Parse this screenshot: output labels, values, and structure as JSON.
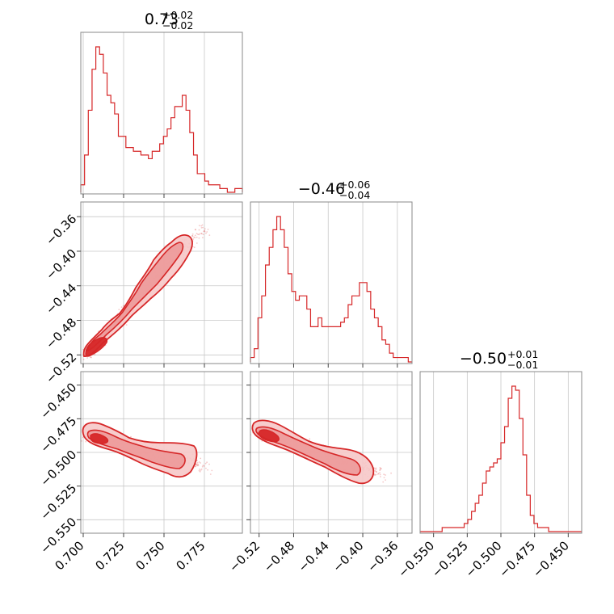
{
  "chart_data": {
    "type": "corner",
    "color": "#d62728",
    "grid": true,
    "parameters": [
      {
        "median": "0.73",
        "err_plus": "+0.02",
        "err_minus": "−0.02",
        "range": [
          0.6985,
          0.7985
        ],
        "ticks": [
          0.7,
          0.725,
          0.75,
          0.775
        ],
        "tick_labels": [
          "0.700",
          "0.725",
          "0.750",
          "0.775"
        ]
      },
      {
        "median": "−0.46",
        "err_plus": "+0.06",
        "err_minus": "−0.04",
        "range": [
          -0.53,
          -0.343
        ],
        "ticks": [
          -0.52,
          -0.48,
          -0.44,
          -0.4,
          -0.36
        ],
        "tick_labels": [
          "−0.52",
          "−0.48",
          "−0.44",
          "−0.40",
          "−0.36"
        ]
      },
      {
        "median": "−0.50",
        "err_plus": "+0.01",
        "err_minus": "−0.01",
        "range": [
          -0.56,
          -0.44
        ],
        "ticks": [
          -0.55,
          -0.525,
          -0.5,
          -0.475,
          -0.45
        ],
        "tick_labels": [
          "−0.550",
          "−0.525",
          "−0.500",
          "−0.475",
          "−0.450"
        ]
      }
    ],
    "histograms": [
      [
        2,
        10,
        22,
        33,
        39,
        37,
        32,
        26,
        24,
        21,
        15,
        15,
        12,
        12,
        11,
        11,
        10,
        10,
        9,
        11,
        11,
        13,
        15,
        17,
        20,
        23,
        23,
        26,
        22,
        16,
        10,
        5,
        5,
        3,
        2,
        2,
        2,
        1,
        1,
        0,
        0,
        1,
        1
      ],
      [
        1,
        3,
        10,
        15,
        22,
        26,
        30,
        33,
        30,
        26,
        20,
        16,
        14,
        15,
        15,
        12,
        8,
        8,
        10,
        8,
        8,
        8,
        8,
        8,
        9,
        10,
        13,
        15,
        15,
        18,
        18,
        16,
        12,
        10,
        8,
        5,
        4,
        2,
        1,
        1,
        1,
        1,
        0
      ],
      [
        0,
        0,
        0,
        0,
        0,
        0,
        1,
        1,
        1,
        1,
        1,
        1,
        2,
        3,
        5,
        7,
        9,
        12,
        15,
        16,
        17,
        18,
        22,
        26,
        33,
        36,
        35,
        28,
        19,
        9,
        4,
        2,
        1,
        1,
        1,
        0,
        0,
        0,
        0,
        0,
        0,
        0,
        0,
        0
      ]
    ]
  }
}
